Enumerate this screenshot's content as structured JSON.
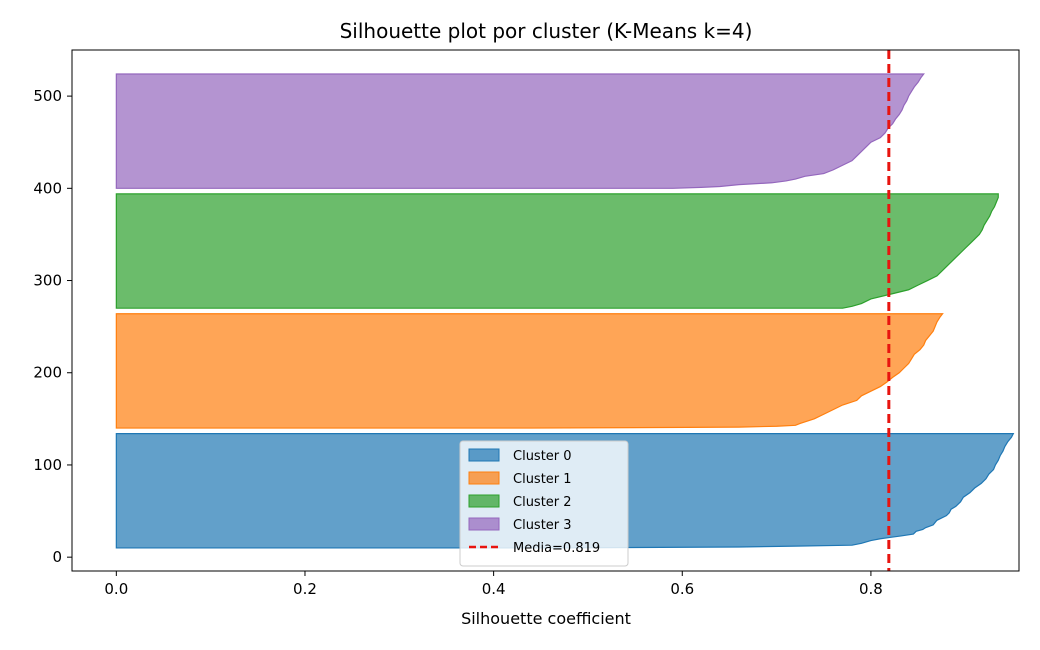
{
  "chart_data": {
    "type": "area",
    "title": "Silhouette plot por cluster (K-Means k=4)",
    "xlabel": "Silhouette coefficient",
    "ylabel": "",
    "xlim": [
      -0.047,
      0.957
    ],
    "ylim": [
      -15,
      550
    ],
    "xticks": [
      "0.0",
      "0.2",
      "0.4",
      "0.6",
      "0.8"
    ],
    "yticks": [
      "0",
      "100",
      "200",
      "300",
      "400",
      "500"
    ],
    "grid": false,
    "legend_position": "lower-center",
    "mean_line": {
      "label": "Media=0.819",
      "value": 0.819,
      "color": "#e8140f"
    },
    "series": [
      {
        "name": "Cluster 0",
        "color": "#1f77b4",
        "y_range": [
          10,
          134
        ],
        "profile": [
          [
            10,
            0.46
          ],
          [
            11,
            0.66
          ],
          [
            12,
            0.72
          ],
          [
            13,
            0.78
          ],
          [
            15,
            0.79
          ],
          [
            18,
            0.8
          ],
          [
            20,
            0.81
          ],
          [
            23,
            0.832
          ],
          [
            25,
            0.845
          ],
          [
            28,
            0.848
          ],
          [
            30,
            0.855
          ],
          [
            32,
            0.858
          ],
          [
            35,
            0.866
          ],
          [
            40,
            0.87
          ],
          [
            45,
            0.88
          ],
          [
            48,
            0.883
          ],
          [
            52,
            0.885
          ],
          [
            55,
            0.89
          ],
          [
            60,
            0.895
          ],
          [
            65,
            0.898
          ],
          [
            70,
            0.905
          ],
          [
            75,
            0.91
          ],
          [
            80,
            0.917
          ],
          [
            85,
            0.922
          ],
          [
            90,
            0.925
          ],
          [
            95,
            0.93
          ],
          [
            100,
            0.932
          ],
          [
            105,
            0.935
          ],
          [
            110,
            0.937
          ],
          [
            115,
            0.94
          ],
          [
            120,
            0.942
          ],
          [
            125,
            0.945
          ],
          [
            130,
            0.949
          ],
          [
            134,
            0.951
          ]
        ]
      },
      {
        "name": "Cluster 1",
        "color": "#ff7f0e",
        "y_range": [
          140,
          264
        ],
        "profile": [
          [
            140,
            0.44
          ],
          [
            141,
            0.66
          ],
          [
            142,
            0.7
          ],
          [
            143,
            0.72
          ],
          [
            145,
            0.725
          ],
          [
            150,
            0.74
          ],
          [
            155,
            0.75
          ],
          [
            160,
            0.76
          ],
          [
            165,
            0.77
          ],
          [
            170,
            0.785
          ],
          [
            175,
            0.79
          ],
          [
            180,
            0.8
          ],
          [
            185,
            0.81
          ],
          [
            190,
            0.817
          ],
          [
            195,
            0.823
          ],
          [
            200,
            0.83
          ],
          [
            205,
            0.835
          ],
          [
            210,
            0.84
          ],
          [
            215,
            0.843
          ],
          [
            220,
            0.846
          ],
          [
            225,
            0.852
          ],
          [
            230,
            0.856
          ],
          [
            235,
            0.858
          ],
          [
            240,
            0.862
          ],
          [
            245,
            0.866
          ],
          [
            250,
            0.868
          ],
          [
            255,
            0.87
          ],
          [
            260,
            0.873
          ],
          [
            264,
            0.876
          ]
        ]
      },
      {
        "name": "Cluster 2",
        "color": "#2ca02c",
        "y_range": [
          270,
          394
        ],
        "profile": [
          [
            270,
            0.77
          ],
          [
            272,
            0.78
          ],
          [
            275,
            0.79
          ],
          [
            280,
            0.8
          ],
          [
            285,
            0.82
          ],
          [
            290,
            0.84
          ],
          [
            295,
            0.85
          ],
          [
            300,
            0.86
          ],
          [
            305,
            0.87
          ],
          [
            310,
            0.875
          ],
          [
            315,
            0.88
          ],
          [
            320,
            0.885
          ],
          [
            325,
            0.89
          ],
          [
            330,
            0.895
          ],
          [
            335,
            0.9
          ],
          [
            340,
            0.905
          ],
          [
            345,
            0.91
          ],
          [
            350,
            0.915
          ],
          [
            355,
            0.918
          ],
          [
            360,
            0.92
          ],
          [
            365,
            0.923
          ],
          [
            370,
            0.926
          ],
          [
            375,
            0.928
          ],
          [
            380,
            0.931
          ],
          [
            385,
            0.933
          ],
          [
            390,
            0.935
          ],
          [
            394,
            0.935
          ]
        ]
      },
      {
        "name": "Cluster 3",
        "color": "#9467bd",
        "y_range": [
          400,
          524
        ],
        "profile": [
          [
            400,
            0.59
          ],
          [
            401,
            0.62
          ],
          [
            402,
            0.64
          ],
          [
            404,
            0.66
          ],
          [
            406,
            0.695
          ],
          [
            408,
            0.71
          ],
          [
            410,
            0.72
          ],
          [
            413,
            0.73
          ],
          [
            416,
            0.75
          ],
          [
            420,
            0.76
          ],
          [
            425,
            0.77
          ],
          [
            430,
            0.78
          ],
          [
            435,
            0.785
          ],
          [
            440,
            0.79
          ],
          [
            445,
            0.795
          ],
          [
            450,
            0.8
          ],
          [
            455,
            0.81
          ],
          [
            460,
            0.815
          ],
          [
            465,
            0.818
          ],
          [
            470,
            0.823
          ],
          [
            475,
            0.826
          ],
          [
            480,
            0.83
          ],
          [
            485,
            0.833
          ],
          [
            490,
            0.835
          ],
          [
            495,
            0.838
          ],
          [
            500,
            0.84
          ],
          [
            505,
            0.843
          ],
          [
            510,
            0.846
          ],
          [
            515,
            0.85
          ],
          [
            520,
            0.853
          ],
          [
            524,
            0.856
          ]
        ]
      }
    ]
  }
}
